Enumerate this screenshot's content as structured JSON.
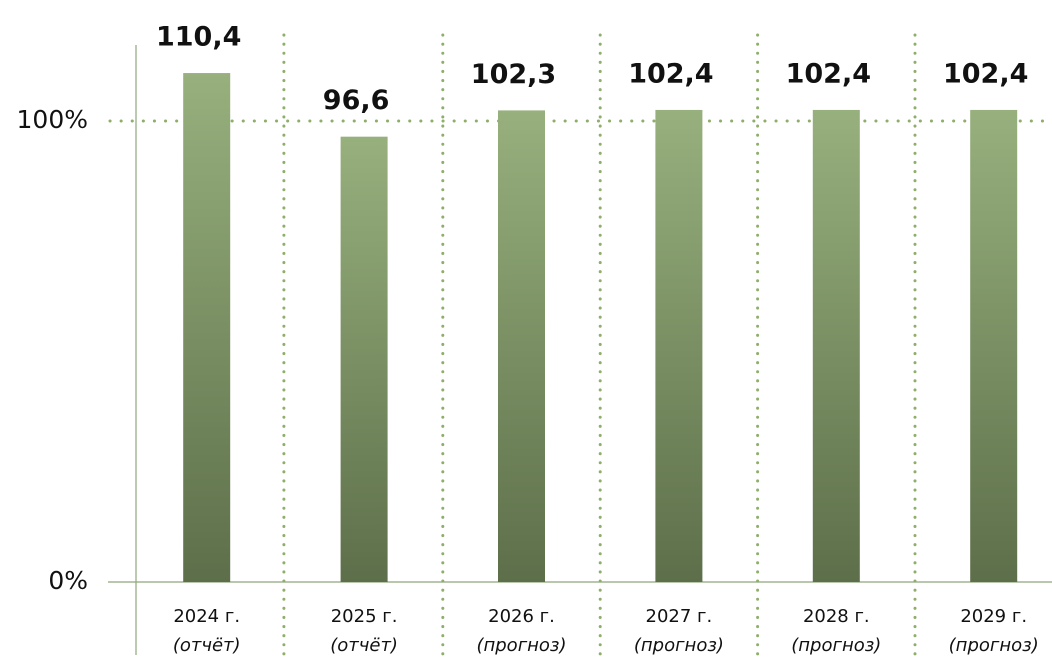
{
  "chart_data": {
    "type": "bar",
    "categories": [
      "2024 г.",
      "2025 г.",
      "2026 г.",
      "2027 г.",
      "2028 г.",
      "2029 г."
    ],
    "category_notes": [
      "(отчёт)",
      "(отчёт)",
      "(прогноз)",
      "(прогноз)",
      "(прогноз)",
      "(прогноз)"
    ],
    "values": [
      110.4,
      96.6,
      102.3,
      102.4,
      102.4,
      102.4
    ],
    "value_labels": [
      "110,4",
      "96,6",
      "102,3",
      "102,4",
      "102,4",
      "102,4"
    ],
    "gradient": [
      "#97b07d",
      "#5d6f4a"
    ],
    "ylim": [
      0,
      100
    ],
    "yticks": [
      {
        "value": 0,
        "label": "0%"
      },
      {
        "value": 100,
        "label": "100%"
      }
    ],
    "grid": true
  }
}
